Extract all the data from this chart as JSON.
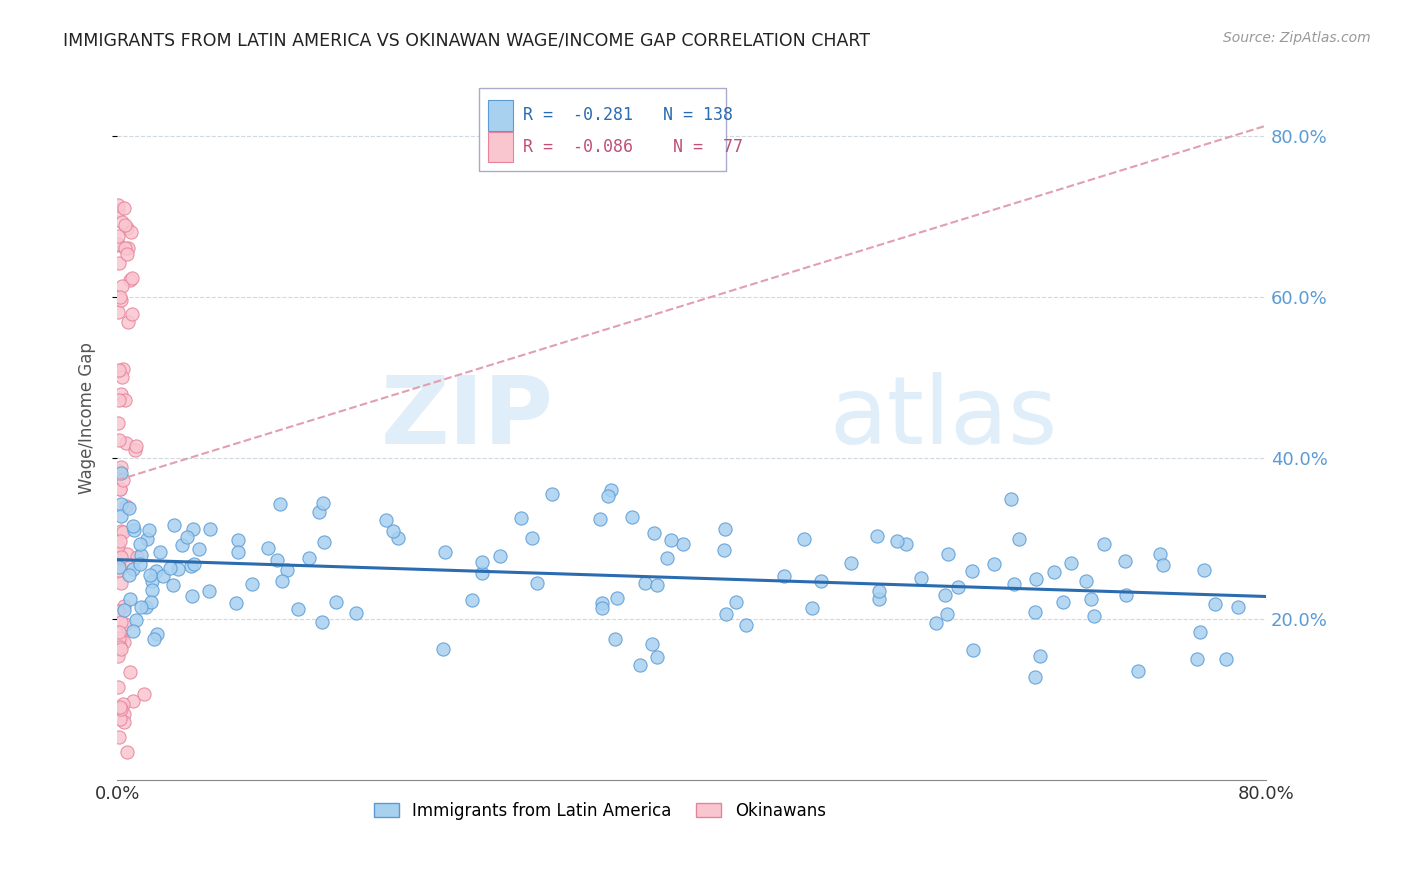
{
  "title": "IMMIGRANTS FROM LATIN AMERICA VS OKINAWAN WAGE/INCOME GAP CORRELATION CHART",
  "source": "Source: ZipAtlas.com",
  "ylabel": "Wage/Income Gap",
  "legend_label1": "Immigrants from Latin America",
  "legend_label2": "Okinawans",
  "r1": "-0.281",
  "n1": "138",
  "r2": "-0.086",
  "n2": "77",
  "color_blue_face": "#a8d1f0",
  "color_blue_edge": "#5b9bd5",
  "color_pink_face": "#f9c6d0",
  "color_pink_edge": "#e8829a",
  "color_trendline_blue": "#2b6cb0",
  "color_trendline_pink": "#e0a0b0",
  "xlim": [
    0.0,
    0.8
  ],
  "ylim": [
    0.0,
    0.9
  ],
  "yticks": [
    0.2,
    0.4,
    0.6,
    0.8
  ],
  "ytick_labels": [
    "20.0%",
    "40.0%",
    "60.0%",
    "80.0%"
  ],
  "xtick_labels": [
    "0.0%",
    "80.0%"
  ],
  "xtick_vals": [
    0.0,
    0.8
  ]
}
